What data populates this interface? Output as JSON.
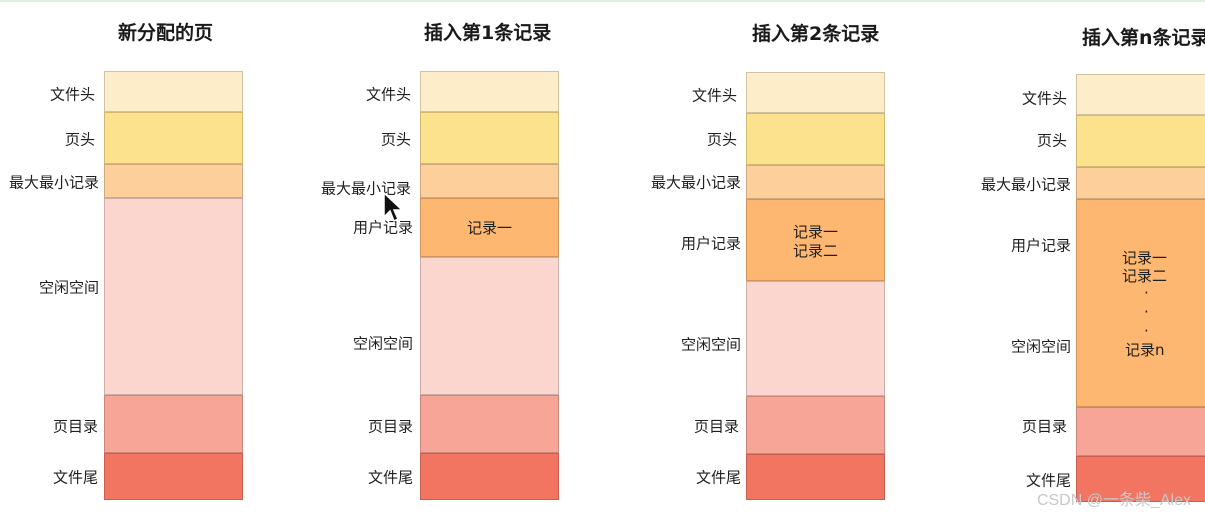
{
  "colors": {
    "file_header": "#fdeec9",
    "page_header": "#fde28d",
    "infimum_supremum": "#fdcf9a",
    "user_records": "#fdb770",
    "free_space": "#fad6cf",
    "page_directory": "#f6a597",
    "file_trailer": "#f27561"
  },
  "diagrams": [
    {
      "title": "新分配的页",
      "labels": {
        "file_header": "文件头",
        "page_header": "页头",
        "infimum_supremum": "最大最小记录",
        "free_space": "空闲空间",
        "page_directory": "页目录",
        "file_trailer": "文件尾"
      }
    },
    {
      "title": "插入第1条记录",
      "labels": {
        "file_header": "文件头",
        "page_header": "页头",
        "infimum_supremum": "最大最小记录",
        "user_records": "用户记录",
        "free_space": "空闲空间",
        "page_directory": "页目录",
        "file_trailer": "文件尾"
      },
      "records": [
        "记录一"
      ]
    },
    {
      "title": "插入第2条记录",
      "labels": {
        "file_header": "文件头",
        "page_header": "页头",
        "infimum_supremum": "最大最小记录",
        "user_records": "用户记录",
        "free_space": "空闲空间",
        "page_directory": "页目录",
        "file_trailer": "文件尾"
      },
      "records": [
        "记录一",
        "记录二"
      ]
    },
    {
      "title": "插入第n条记录",
      "labels": {
        "file_header": "文件头",
        "page_header": "页头",
        "infimum_supremum": "最大最小记录",
        "user_records": "用户记录",
        "free_space": "空闲空间",
        "page_directory": "页目录",
        "file_trailer": "文件尾"
      },
      "records": [
        "记录一",
        "记录二",
        "·",
        "·",
        "·",
        "记录n"
      ]
    }
  ],
  "watermark": "CSDN @一条柴_Alex"
}
